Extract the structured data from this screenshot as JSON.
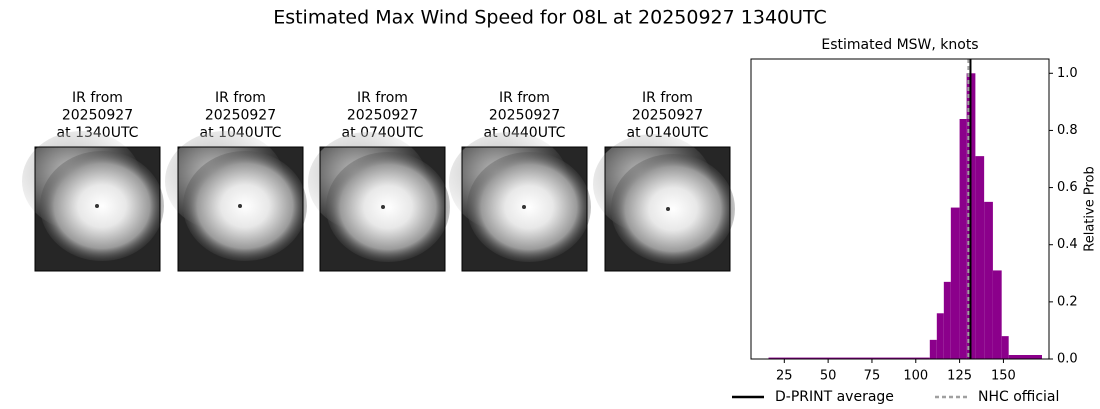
{
  "title": "Estimated Max Wind Speed for 08L at 20250927 1340UTC",
  "panels": [
    [
      "IR from",
      "20250927",
      "at 1340UTC"
    ],
    [
      "IR from",
      "20250927",
      "at 1040UTC"
    ],
    [
      "IR from",
      "20250927",
      "at 0740UTC"
    ],
    [
      "IR from",
      "20250927",
      "at 0440UTC"
    ],
    [
      "IR from",
      "20250927",
      "at 0140UTC"
    ]
  ],
  "chart_data": {
    "type": "histogram",
    "title": "Estimated MSW, knots",
    "ylabel": "Relative Prob",
    "bins": [
      16,
      108,
      112,
      116,
      120,
      125,
      129,
      134,
      139,
      144,
      149,
      153,
      172
    ],
    "values": [
      0.005,
      0.067,
      0.16,
      0.27,
      0.53,
      0.84,
      1.0,
      0.71,
      0.55,
      0.31,
      0.08,
      0.014
    ],
    "color": "#8b008b",
    "xlim": [
      6,
      176
    ],
    "xticks": [
      25,
      50,
      75,
      100,
      125,
      150
    ],
    "ylim": [
      0,
      1.05
    ],
    "yticks": [
      {
        "value": 0,
        "label": "0.0"
      },
      {
        "value": 0.2,
        "label": "0.2"
      },
      {
        "value": 0.4,
        "label": "0.4"
      },
      {
        "value": 0.6,
        "label": "0.6"
      },
      {
        "value": 0.8,
        "label": "0.8"
      },
      {
        "value": 1,
        "label": "1.0"
      }
    ],
    "lines": [
      {
        "name": "D-PRINT average",
        "x": 131.2,
        "color": "#000000",
        "style": "solid"
      },
      {
        "name": "NHC official",
        "x": 130,
        "color": "#a0a0a0",
        "style": "dotted"
      }
    ]
  }
}
